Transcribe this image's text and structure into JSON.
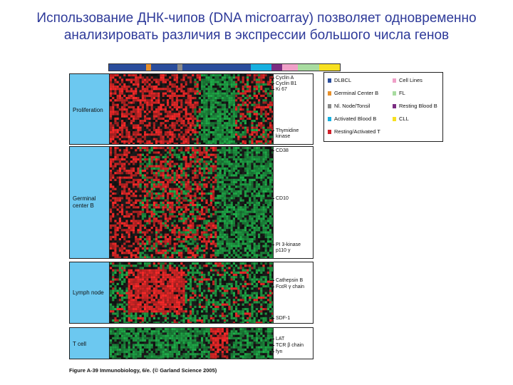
{
  "slide": {
    "title": "Использование ДНК-чипов (DNA microarray) позволяет одновременно анализировать различия в экспрессии большого числа генов"
  },
  "figure": {
    "caption": "Figure A-39 Immunobiology, 6/e. (© Garland Science 2005)",
    "color_scale": [
      "#ff2a2a",
      "#1f1f1f",
      "#1fb04a"
    ],
    "colorbar": [
      {
        "color": "#2a4d9c",
        "flex": 7
      },
      {
        "color": "#e8902a",
        "flex": 1
      },
      {
        "color": "#2a4d9c",
        "flex": 5
      },
      {
        "color": "#8a8a8a",
        "flex": 1
      },
      {
        "color": "#2a4d9c",
        "flex": 13
      },
      {
        "color": "#17b0e0",
        "flex": 4
      },
      {
        "color": "#7b2d82",
        "flex": 2
      },
      {
        "color": "#f0a0c8",
        "flex": 3
      },
      {
        "color": "#a8dca0",
        "flex": 4
      },
      {
        "color": "#f7e020",
        "flex": 4
      }
    ],
    "panels": [
      {
        "label": "Proliferation",
        "genes": [
          "Cyclin A",
          "Cyclin B1",
          "Ki 67",
          "Thymidine\nkinase"
        ]
      },
      {
        "label": "Germinal\ncenter B",
        "genes": [
          "CD38",
          "CD10",
          "PI 3-kinase\np110 γ"
        ]
      },
      {
        "label": "Lymph node",
        "genes": [
          "Cathepsin B",
          "FcεR γ chain",
          "SDF-1"
        ]
      },
      {
        "label": "T cell",
        "genes": [
          "LAT",
          "TCR β chain",
          "fyn"
        ]
      }
    ],
    "legend": [
      {
        "label": "DLBCL",
        "color": "#2a4d9c"
      },
      {
        "label": "Germinal Center B",
        "color": "#e8902a"
      },
      {
        "label": "Nl. Node/Tonsil",
        "color": "#8a8a8a"
      },
      {
        "label": "Activated Blood B",
        "color": "#17b0e0"
      },
      {
        "label": "Resting/Activated T",
        "color": "#d0202a"
      },
      {
        "label": "Cell Lines",
        "color": "#f0a0c8"
      },
      {
        "label": "FL",
        "color": "#a8dca0"
      },
      {
        "label": "Resting Blood B",
        "color": "#7b2d82"
      },
      {
        "label": "CLL",
        "color": "#f7e020"
      }
    ]
  }
}
